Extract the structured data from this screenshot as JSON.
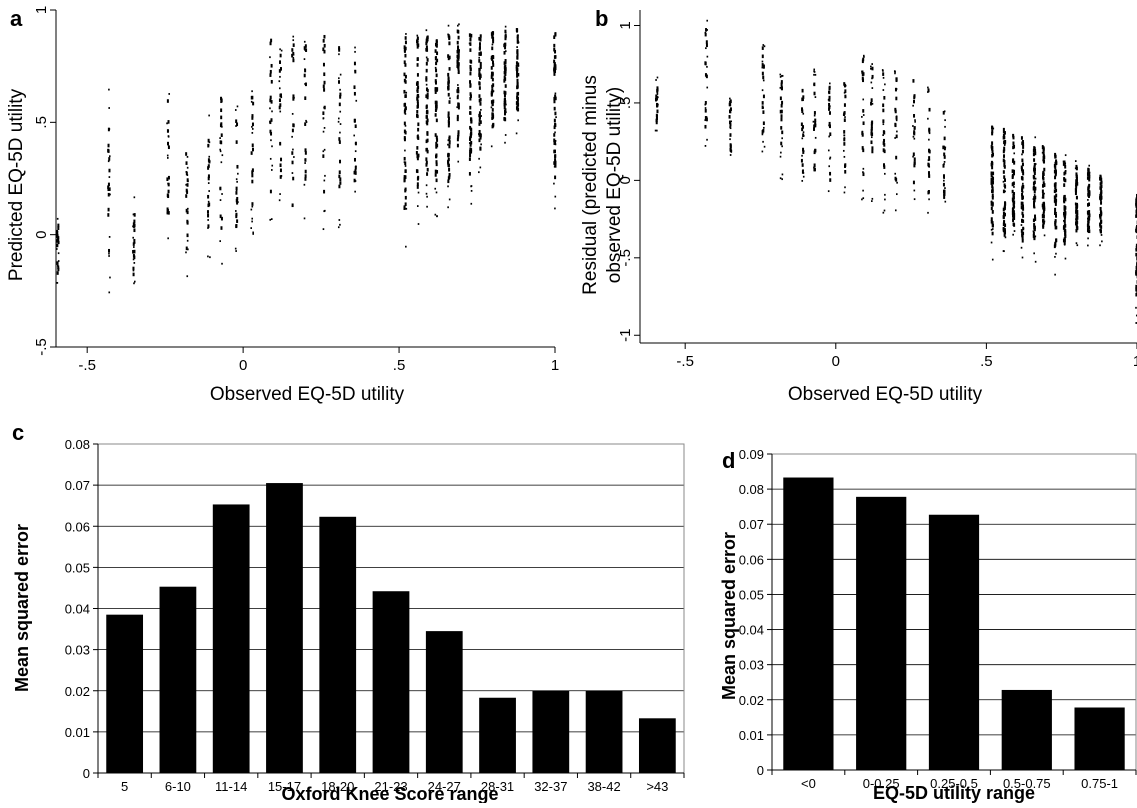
{
  "chart_data": [
    {
      "panel": "a",
      "type": "scatter",
      "xlabel": "Observed EQ-5D utility",
      "ylabel": "Predicted EQ-5D utility",
      "xlim": [
        -0.6,
        1.0
      ],
      "ylim": [
        -0.5,
        1.0
      ],
      "x_ticks": [
        -0.5,
        0,
        0.5,
        1
      ],
      "x_tick_labels": [
        "-.5",
        "0",
        ".5",
        "1"
      ],
      "y_ticks": [
        -0.5,
        0,
        0.5,
        1
      ],
      "y_tick_labels": [
        "-.5",
        "0",
        ".5",
        "1"
      ],
      "grid": false,
      "color": "#000000",
      "observed_levels": [
        -0.594,
        -0.43,
        -0.35,
        -0.24,
        -0.18,
        -0.11,
        -0.07,
        -0.02,
        0.03,
        0.09,
        0.12,
        0.16,
        0.2,
        0.26,
        0.31,
        0.36,
        0.52,
        0.56,
        0.59,
        0.62,
        0.66,
        0.69,
        0.73,
        0.76,
        0.8,
        0.84,
        0.88,
        1.0
      ],
      "predicted_range_at_level": [
        [
          -0.27,
          0.08
        ],
        [
          -0.27,
          0.65
        ],
        [
          -0.27,
          0.18
        ],
        [
          -0.12,
          0.68
        ],
        [
          -0.2,
          0.4
        ],
        [
          -0.13,
          0.55
        ],
        [
          -0.15,
          0.65
        ],
        [
          -0.12,
          0.63
        ],
        [
          -0.1,
          0.67
        ],
        [
          0.0,
          0.94
        ],
        [
          0.0,
          0.92
        ],
        [
          -0.07,
          0.9
        ],
        [
          0.0,
          0.93
        ],
        [
          0.0,
          0.95
        ],
        [
          0.02,
          0.95
        ],
        [
          0.08,
          0.85
        ],
        [
          -0.1,
          0.93
        ],
        [
          0.02,
          0.95
        ],
        [
          0.1,
          0.94
        ],
        [
          0.05,
          0.94
        ],
        [
          0.05,
          0.94
        ],
        [
          0.25,
          0.94
        ],
        [
          0.1,
          0.94
        ],
        [
          0.2,
          0.94
        ],
        [
          0.35,
          0.94
        ],
        [
          0.4,
          0.94
        ],
        [
          0.45,
          0.94
        ],
        [
          0.07,
          0.95
        ]
      ]
    },
    {
      "panel": "b",
      "type": "scatter",
      "xlabel": "Observed EQ-5D utility",
      "ylabel": "Residual (predicted minus observed EQ-5D utility)",
      "ylabel_lines": [
        "Residual (predicted minus",
        "observed EQ-5D utility)"
      ],
      "xlim": [
        -0.65,
        1.0
      ],
      "ylim": [
        -1.05,
        1.1
      ],
      "x_ticks": [
        -0.5,
        0,
        0.5,
        1
      ],
      "x_tick_labels": [
        "-.5",
        "0",
        ".5",
        "1"
      ],
      "y_ticks": [
        -1,
        -0.5,
        0,
        0.5,
        1
      ],
      "y_tick_labels": [
        "-1",
        "-.5",
        "0",
        ".5",
        "1"
      ],
      "grid": false,
      "color": "#000000",
      "observed_levels": [
        -0.594,
        -0.43,
        -0.35,
        -0.24,
        -0.18,
        -0.11,
        -0.07,
        -0.02,
        0.03,
        0.09,
        0.12,
        0.16,
        0.2,
        0.26,
        0.31,
        0.36,
        0.52,
        0.56,
        0.59,
        0.62,
        0.66,
        0.69,
        0.73,
        0.76,
        0.8,
        0.84,
        0.88,
        1.0
      ],
      "residual_range_at_level": [
        [
          0.3,
          0.67
        ],
        [
          0.15,
          1.12
        ],
        [
          0.1,
          0.55
        ],
        [
          0.12,
          0.9
        ],
        [
          -0.05,
          0.7
        ],
        [
          -0.1,
          0.65
        ],
        [
          -0.15,
          0.72
        ],
        [
          -0.18,
          0.65
        ],
        [
          -0.13,
          0.7
        ],
        [
          -0.2,
          0.85
        ],
        [
          -0.15,
          0.8
        ],
        [
          -0.23,
          0.74
        ],
        [
          -0.2,
          0.73
        ],
        [
          -0.26,
          0.69
        ],
        [
          -0.27,
          0.64
        ],
        [
          -0.28,
          0.49
        ],
        [
          -0.62,
          0.41
        ],
        [
          -0.54,
          0.39
        ],
        [
          -0.49,
          0.35
        ],
        [
          -0.57,
          0.32
        ],
        [
          -0.61,
          0.28
        ],
        [
          -0.44,
          0.25
        ],
        [
          -0.63,
          0.21
        ],
        [
          -0.56,
          0.18
        ],
        [
          -0.45,
          0.14
        ],
        [
          -0.44,
          0.1
        ],
        [
          -0.43,
          0.06
        ],
        [
          -0.93,
          -0.05
        ]
      ]
    },
    {
      "panel": "c",
      "type": "bar",
      "categories": [
        "5",
        "6-10",
        "11-14",
        "15-17",
        "18-20",
        "21-23",
        "24-27",
        "28-31",
        "32-37",
        "38-42",
        ">43"
      ],
      "values": [
        0.0385,
        0.0453,
        0.0653,
        0.0705,
        0.0623,
        0.0442,
        0.0345,
        0.0183,
        0.02,
        0.02,
        0.0133
      ],
      "xlabel": "Oxford Knee Score range",
      "ylabel": "Mean squared error",
      "ylim": [
        0,
        0.08
      ],
      "y_ticks": [
        0,
        0.01,
        0.02,
        0.03,
        0.04,
        0.05,
        0.06,
        0.07,
        0.08
      ],
      "y_tick_labels": [
        "0",
        "0.01",
        "0.02",
        "0.03",
        "0.04",
        "0.05",
        "0.06",
        "0.07",
        "0.08"
      ],
      "grid": true,
      "color": "#000000"
    },
    {
      "panel": "d",
      "type": "bar",
      "categories": [
        "<0",
        "0-0.25",
        "0.25-0.5",
        "0.5-0.75",
        "0.75-1"
      ],
      "values": [
        0.0833,
        0.0778,
        0.0727,
        0.0228,
        0.0178
      ],
      "xlabel": "EQ-5D utility range",
      "ylabel": "Mean squared error",
      "ylim": [
        0,
        0.09
      ],
      "y_ticks": [
        0,
        0.01,
        0.02,
        0.03,
        0.04,
        0.05,
        0.06,
        0.07,
        0.08,
        0.09
      ],
      "y_tick_labels": [
        "0",
        "0.01",
        "0.02",
        "0.03",
        "0.04",
        "0.05",
        "0.06",
        "0.07",
        "0.08",
        "0.09"
      ],
      "grid": true,
      "color": "#000000"
    }
  ]
}
